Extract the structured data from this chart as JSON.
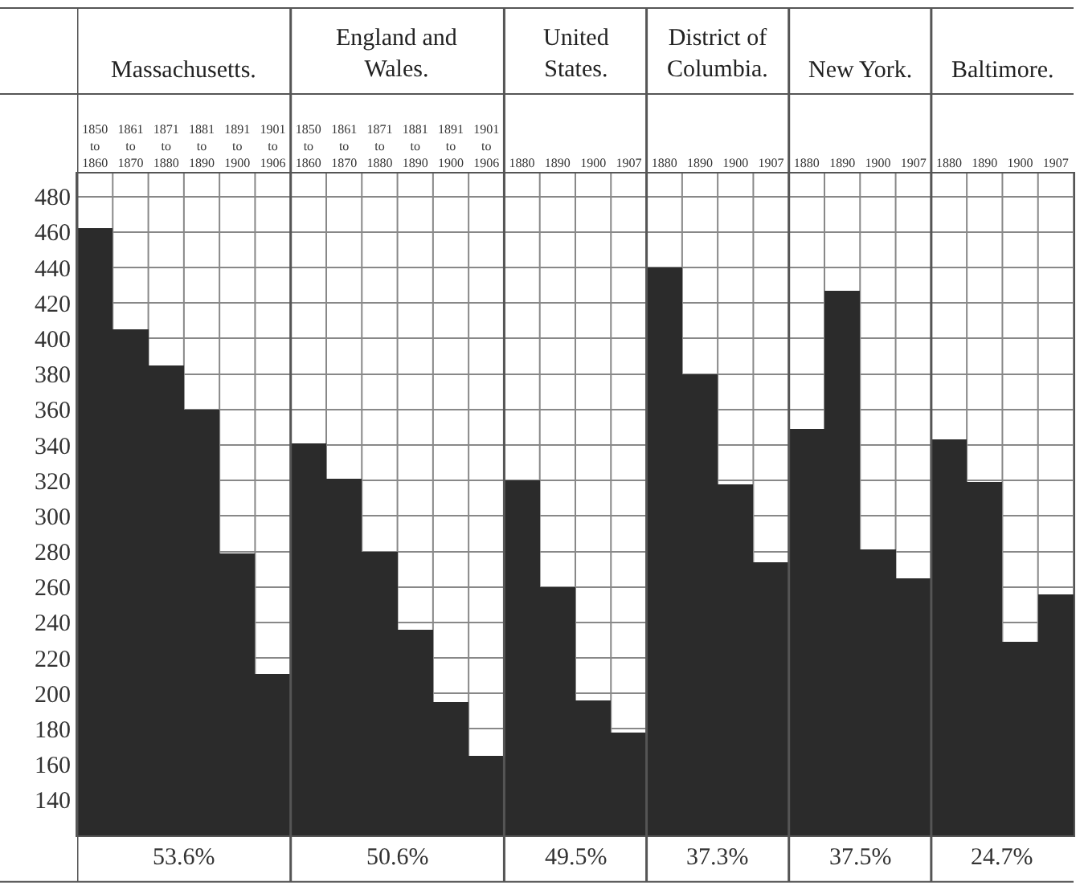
{
  "chart_data": {
    "type": "bar",
    "categories": [
      "1850 to 1860",
      "1861 to 1870",
      "1871 to 1880",
      "1881 to 1890",
      "1891 to 1900",
      "1901 to 1906",
      "1850 to 1860",
      "1861 to 1870",
      "1871 to 1880",
      "1881 to 1890",
      "1891 to 1900",
      "1901 to 1906",
      "1880",
      "1890",
      "1900",
      "1907",
      "1880",
      "1890",
      "1900",
      "1907",
      "1880",
      "1890",
      "1900",
      "1907",
      "1880",
      "1890",
      "1900",
      "1907"
    ],
    "series": [
      {
        "color": "#2b2b2b",
        "values": [
          462,
          405,
          385,
          360,
          279,
          211,
          null,
          null,
          null,
          null,
          null,
          null,
          null,
          null,
          null,
          null,
          null,
          null,
          null,
          null,
          null,
          null,
          null,
          null,
          null,
          null,
          null,
          null
        ]
      },
      {
        "color": "#2b2b2b",
        "values": [
          null,
          null,
          null,
          null,
          null,
          null,
          341,
          321,
          280,
          236,
          195,
          165,
          null,
          null,
          null,
          null,
          null,
          null,
          null,
          null,
          null,
          null,
          null,
          null,
          null,
          null,
          null,
          null
        ]
      },
      {
        "color": "#2b2b2b",
        "values": [
          null,
          null,
          null,
          null,
          null,
          null,
          null,
          null,
          null,
          null,
          null,
          null,
          320,
          260,
          196,
          178,
          null,
          null,
          null,
          null,
          null,
          null,
          null,
          null,
          null,
          null,
          null,
          null
        ]
      },
      {
        "color": "#2b2b2b",
        "values": [
          null,
          null,
          null,
          null,
          null,
          null,
          null,
          null,
          null,
          null,
          null,
          null,
          null,
          null,
          null,
          null,
          440,
          380,
          318,
          274,
          null,
          null,
          null,
          null,
          null,
          null,
          null,
          null
        ]
      },
      {
        "color": "#2b2b2b",
        "values": [
          null,
          null,
          null,
          null,
          null,
          null,
          null,
          null,
          null,
          null,
          null,
          null,
          null,
          null,
          null,
          null,
          null,
          null,
          null,
          null,
          349,
          427,
          281,
          265,
          null,
          null,
          null,
          null
        ]
      },
      {
        "color": "#2b2b2b",
        "values": [
          null,
          null,
          null,
          null,
          null,
          null,
          null,
          null,
          null,
          null,
          null,
          null,
          null,
          null,
          null,
          null,
          null,
          null,
          null,
          null,
          null,
          null,
          null,
          null,
          343,
          319,
          229,
          256
        ]
      }
    ],
    "annotations": [
      "Massachusetts.",
      "England and Wales.",
      "United States.",
      "District of Columbia.",
      "New York.",
      "Baltimore.",
      "53.6%",
      "50.6%",
      "49.5%",
      "37.3%",
      "37.5%",
      "24.7%"
    ],
    "ylim": [
      120,
      493
    ],
    "yticks": [
      140,
      160,
      180,
      200,
      220,
      240,
      260,
      280,
      300,
      320,
      340,
      360,
      380,
      400,
      420,
      440,
      460,
      480
    ],
    "grid": true
  }
}
